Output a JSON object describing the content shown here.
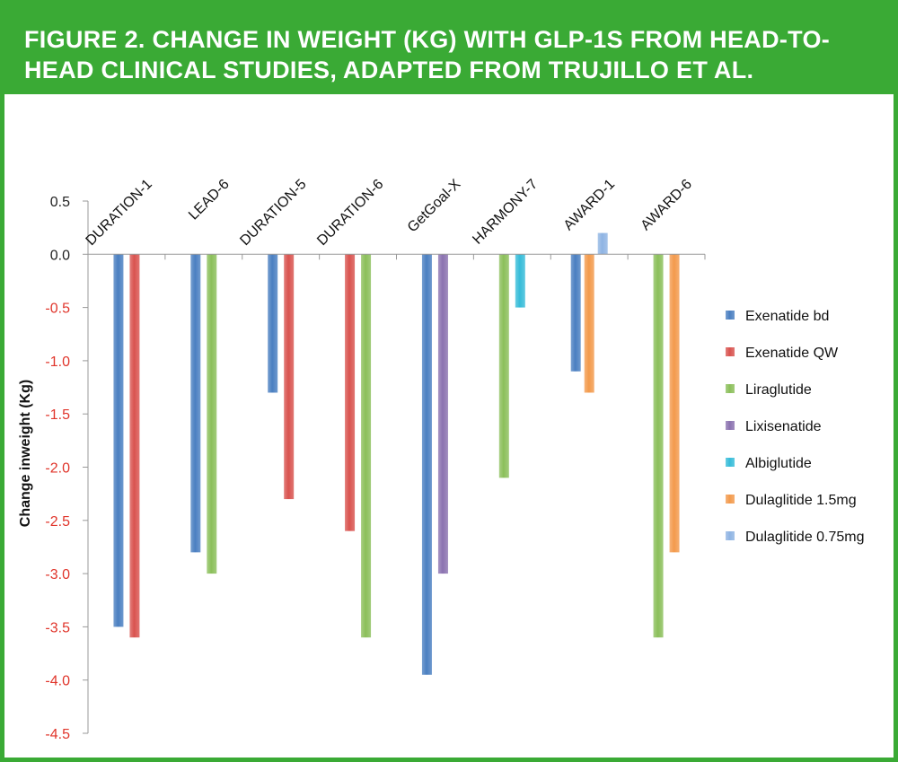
{
  "title": "FIGURE 2. CHANGE IN WEIGHT (KG) WITH GLP-1S FROM HEAD-TO-HEAD CLINICAL STUDIES, ADAPTED FROM TRUJILLO ET AL.",
  "colors": {
    "header_bg": "#3aaa35",
    "header_text": "#ffffff",
    "axis_line": "#999999",
    "tick_text": "#222222",
    "negative_tick_text": "#e0352b"
  },
  "chart_data": {
    "type": "bar",
    "title": "",
    "xlabel": "",
    "ylabel": "Change inweight (Kg)",
    "ylim": [
      -4.5,
      0.5
    ],
    "yticks": [
      "0.5",
      "0.0",
      "-0.5",
      "-1.0",
      "-1.5",
      "-2.0",
      "-2.5",
      "-3.0",
      "-3.5",
      "-4.0",
      "-4.5"
    ],
    "yticks_values": [
      0.5,
      0.0,
      -0.5,
      -1.0,
      -1.5,
      -2.0,
      -2.5,
      -3.0,
      -3.5,
      -4.0,
      -4.5
    ],
    "categories": [
      "DURATION-1",
      "LEAD-6",
      "DURATION-5",
      "DURATION-6",
      "GetGoal-X",
      "HARMONY-7",
      "AWARD-1",
      "AWARD-6"
    ],
    "category_label_position": "top",
    "legend_position": "right",
    "grid": false,
    "series": [
      {
        "name": "Exenatide bd",
        "color": "#4a7fc1",
        "values": [
          -3.5,
          -2.8,
          -1.3,
          null,
          -3.95,
          null,
          -1.1,
          null
        ]
      },
      {
        "name": "Exenatide QW",
        "color": "#d9534f",
        "values": [
          -3.6,
          null,
          -2.3,
          -2.6,
          null,
          null,
          null,
          null
        ]
      },
      {
        "name": "Liraglutide",
        "color": "#8bbf5a",
        "values": [
          null,
          -3.0,
          null,
          -3.6,
          null,
          -2.1,
          null,
          -3.6
        ]
      },
      {
        "name": "Lixisenatide",
        "color": "#8b72b0",
        "values": [
          null,
          null,
          null,
          null,
          -3.0,
          null,
          null,
          null
        ]
      },
      {
        "name": "Albiglutide",
        "color": "#36bcd9",
        "values": [
          null,
          null,
          null,
          null,
          null,
          -0.5,
          null,
          null
        ]
      },
      {
        "name": "Dulaglitide 1.5mg",
        "color": "#f39a4c",
        "values": [
          null,
          null,
          null,
          null,
          null,
          null,
          -1.3,
          -2.8
        ]
      },
      {
        "name": "Dulaglitide 0.75mg",
        "color": "#8fb4e3",
        "values": [
          null,
          null,
          null,
          null,
          null,
          null,
          0.2,
          null
        ]
      }
    ],
    "bars": [
      {
        "category": "DURATION-1",
        "series": "Exenatide bd"
      },
      {
        "category": "DURATION-1",
        "series": "Exenatide QW"
      },
      {
        "category": "LEAD-6",
        "series": "Exenatide bd"
      },
      {
        "category": "LEAD-6",
        "series": "Liraglutide"
      },
      {
        "category": "DURATION-5",
        "series": "Exenatide bd"
      },
      {
        "category": "DURATION-5",
        "series": "Exenatide QW"
      },
      {
        "category": "DURATION-6",
        "series": "Exenatide QW"
      },
      {
        "category": "DURATION-6",
        "series": "Liraglutide"
      },
      {
        "category": "GetGoal-X",
        "series": "Exenatide bd"
      },
      {
        "category": "GetGoal-X",
        "series": "Lixisenatide"
      },
      {
        "category": "HARMONY-7",
        "series": "Liraglutide"
      },
      {
        "category": "HARMONY-7",
        "series": "Albiglutide"
      },
      {
        "category": "AWARD-1",
        "series": "Exenatide bd"
      },
      {
        "category": "AWARD-1",
        "series": "Dulaglitide 1.5mg"
      },
      {
        "category": "AWARD-1",
        "series": "Dulaglitide 0.75mg"
      },
      {
        "category": "AWARD-6",
        "series": "Liraglutide"
      },
      {
        "category": "AWARD-6",
        "series": "Dulaglitide 1.5mg"
      }
    ]
  }
}
